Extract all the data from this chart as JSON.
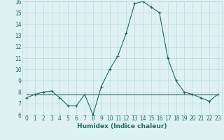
{
  "xlabel": "Humidex (Indice chaleur)",
  "x": [
    0,
    1,
    2,
    3,
    4,
    5,
    6,
    7,
    8,
    9,
    10,
    11,
    12,
    13,
    14,
    15,
    16,
    17,
    18,
    19,
    20,
    21,
    22,
    23
  ],
  "y_main": [
    7.5,
    7.8,
    8.0,
    8.1,
    7.5,
    6.8,
    6.8,
    7.8,
    6.0,
    8.5,
    10.0,
    11.2,
    13.2,
    15.8,
    16.0,
    15.5,
    15.0,
    11.0,
    9.0,
    8.0,
    7.8,
    7.5,
    7.2,
    7.8
  ],
  "y_ref": [
    7.8,
    7.8,
    7.8,
    7.8,
    7.8,
    7.8,
    7.8,
    7.8,
    7.8,
    7.8,
    7.8,
    7.8,
    7.8,
    7.8,
    7.8,
    7.8,
    7.8,
    7.8,
    7.8,
    7.8,
    7.8,
    7.8,
    7.8,
    7.8
  ],
  "line_color": "#1a6b5e",
  "bg_color": "#dff2f2",
  "grid_color": "#b8dcdc",
  "ylim": [
    6,
    16
  ],
  "xlim": [
    -0.5,
    23.5
  ],
  "yticks": [
    6,
    7,
    8,
    9,
    10,
    11,
    12,
    13,
    14,
    15,
    16
  ],
  "xticks": [
    0,
    1,
    2,
    3,
    4,
    5,
    6,
    7,
    8,
    9,
    10,
    11,
    12,
    13,
    14,
    15,
    16,
    17,
    18,
    19,
    20,
    21,
    22,
    23
  ],
  "xlabel_fontsize": 6.5,
  "tick_fontsize": 5.5
}
